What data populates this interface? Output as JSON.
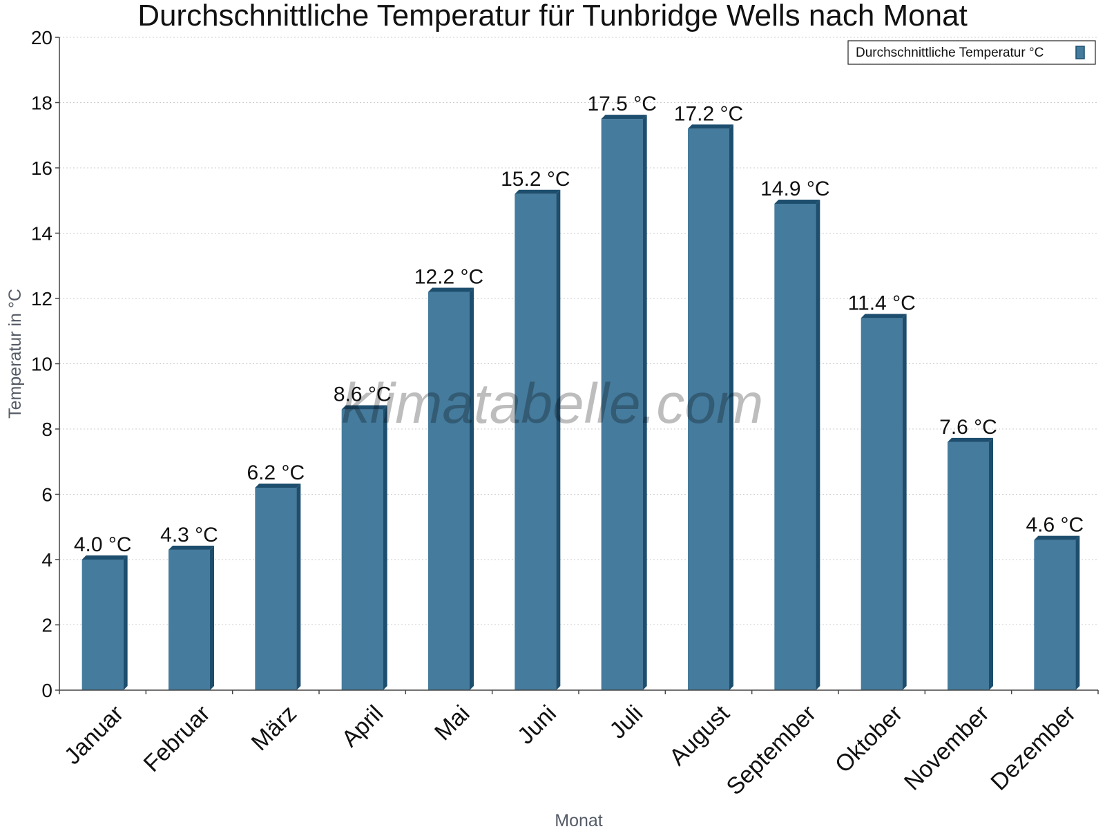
{
  "chart_data": {
    "type": "bar",
    "title": "Durchschnittliche Temperatur für Tunbridge Wells nach Monat",
    "xlabel": "Monat",
    "ylabel": "Temperatur in °C",
    "ylim": [
      0,
      20
    ],
    "yticks": [
      0,
      2,
      4,
      6,
      8,
      10,
      12,
      14,
      16,
      18,
      20
    ],
    "grid": true,
    "legend_position": "top-right",
    "watermark": "klimatabelle.com",
    "categories": [
      "Januar",
      "Februar",
      "März",
      "April",
      "Mai",
      "Juni",
      "Juli",
      "August",
      "September",
      "Oktober",
      "November",
      "Dezember"
    ],
    "series": [
      {
        "name": "Durchschnittliche Temperatur °C",
        "values": [
          4.0,
          4.3,
          6.2,
          8.6,
          12.2,
          15.2,
          17.5,
          17.2,
          14.9,
          11.4,
          7.6,
          4.6
        ],
        "labels": [
          "4.0 °C",
          "4.3 °C",
          "6.2 °C",
          "8.6 °C",
          "12.2 °C",
          "15.2 °C",
          "17.5 °C",
          "17.2 °C",
          "14.9 °C",
          "11.4 °C",
          "7.6 °C",
          "4.6 °C"
        ]
      }
    ],
    "colors": {
      "bar": "#457b9d",
      "bar_dark": "#1d4e6e",
      "grid": "#cccccc",
      "axis": "#444444"
    }
  }
}
